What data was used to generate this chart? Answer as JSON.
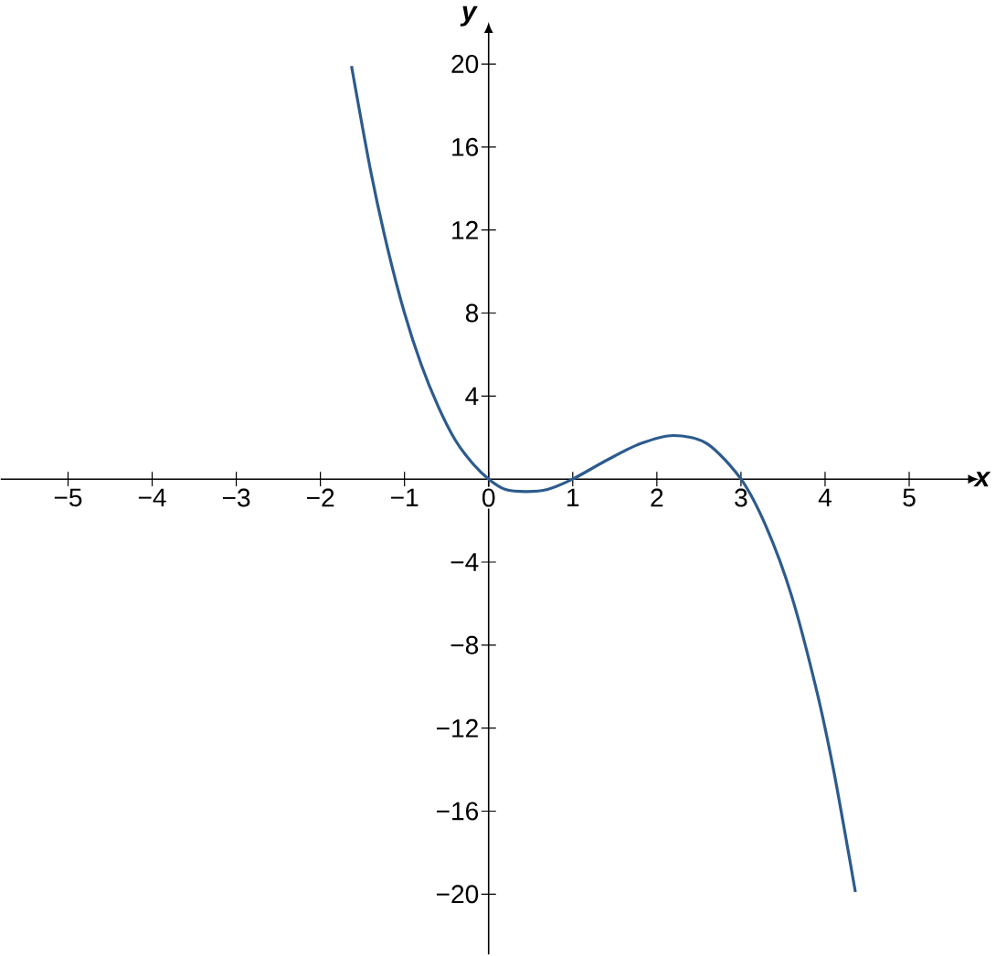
{
  "chart_data": {
    "type": "line",
    "xlabel": "x",
    "ylabel": "y",
    "color": "#2c5b8e",
    "xlim": [
      -5.8,
      5.7
    ],
    "ylim": [
      -22.9,
      21.5
    ],
    "xticks": [
      {
        "value": -5,
        "label": "−5"
      },
      {
        "value": -4,
        "label": "−4"
      },
      {
        "value": -3,
        "label": "−3"
      },
      {
        "value": -2,
        "label": "−2"
      },
      {
        "value": -1,
        "label": "−1"
      },
      0,
      1,
      2,
      3,
      4,
      5
    ],
    "yticks": [
      {
        "value": -20,
        "label": "−20"
      },
      {
        "value": -16,
        "label": "−16"
      },
      {
        "value": -12,
        "label": "−12"
      },
      {
        "value": -8,
        "label": "−8"
      },
      {
        "value": -4,
        "label": "−4"
      },
      4,
      8,
      12,
      16,
      20
    ],
    "x": [
      -1.63,
      -1.4,
      -1.2,
      -1,
      -0.8,
      -0.6,
      -0.4,
      -0.2,
      0,
      0.2,
      0.45,
      0.7,
      1,
      1.4,
      1.8,
      2.2,
      2.6,
      3,
      3.3,
      3.6,
      3.9,
      4.1,
      4.3,
      4.36
    ],
    "values": [
      19.9,
      14.8,
      11.1,
      8,
      5.5,
      3.5,
      1.9,
      0.8,
      0,
      -0.5,
      -0.6,
      -0.5,
      0,
      0.9,
      1.7,
      2.1,
      1.7,
      0,
      -2.3,
      -5.6,
      -10.2,
      -14,
      -18.5,
      -19.9
    ],
    "grid": false,
    "marker": "none",
    "line_style": "solid"
  }
}
